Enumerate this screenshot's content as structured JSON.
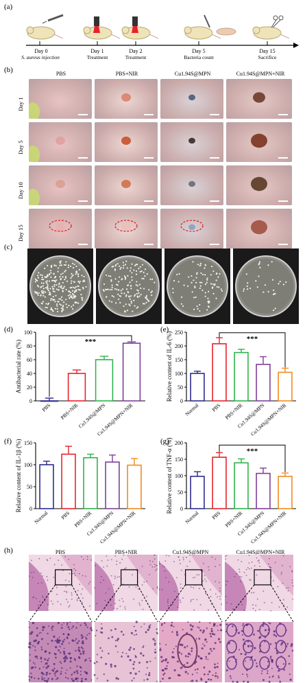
{
  "panels": {
    "a": "(a)",
    "b": "(b)",
    "c": "(c)",
    "d": "(d)",
    "e": "(e)",
    "f": "(f)",
    "g": "(g)",
    "h": "(h)"
  },
  "timeline": {
    "events": [
      {
        "day": "Day 0",
        "label": "S. aureus injection"
      },
      {
        "day": "Day 1",
        "label": "Treatment"
      },
      {
        "day": "Day 2",
        "label": "Treatment"
      },
      {
        "day": "Day 5",
        "label": "Bacteria count"
      },
      {
        "day": "Day 15",
        "label": "Sacrifice"
      }
    ]
  },
  "groups": [
    "PBS",
    "PBS+NIR",
    "Cu1.94S@MPN",
    "Cu1.94S@MPN+NIR"
  ],
  "days": [
    "Day 1",
    "Day 5",
    "Day 10",
    "Day 15"
  ],
  "significance": "***",
  "colors": {
    "blue": "#2b2b8f",
    "red": "#e8212a",
    "green": "#2db34a",
    "purple": "#7d3f98",
    "orange": "#f28a1e"
  },
  "chart_data": [
    {
      "panel": "d",
      "type": "bar",
      "categories": [
        "PBS",
        "PBS+NIR",
        "Cu1.94S@MPN",
        "Cu1.94S@MPN+NIR"
      ],
      "values": [
        0,
        40,
        60,
        84
      ],
      "errors": [
        4,
        5,
        5,
        2
      ],
      "ylabel": "Antibacterial rate (%)",
      "ylim": [
        0,
        100
      ],
      "yticks": [
        "0",
        "20",
        "40",
        "60",
        "80",
        "100"
      ]
    },
    {
      "panel": "e",
      "type": "bar",
      "categories": [
        "Normal",
        "PBS",
        "PBS+NIR",
        "Cu1.94S@MPN",
        "Cu1.94S@MPN+NIR"
      ],
      "values": [
        100,
        208,
        176,
        133,
        104
      ],
      "errors": [
        8,
        22,
        12,
        28,
        15
      ],
      "ylabel": "Relative content of IL-6 (%)",
      "ylim": [
        0,
        250
      ],
      "yticks": [
        "0",
        "50",
        "100",
        "150",
        "200",
        "250"
      ]
    },
    {
      "panel": "f",
      "type": "bar",
      "categories": [
        "Normal",
        "PBS",
        "PBS+NIR",
        "Cu1.94S@MPN",
        "Cu1.94S@MPN+NIR"
      ],
      "values": [
        100,
        124,
        116,
        106,
        99
      ],
      "errors": [
        8,
        18,
        8,
        16,
        15
      ],
      "ylabel": "Relative content of IL-1β (%)",
      "ylim": [
        0,
        150
      ],
      "yticks": [
        "0",
        "50",
        "100",
        "150"
      ]
    },
    {
      "panel": "g",
      "type": "bar",
      "categories": [
        "Normal",
        "PBS",
        "PBS+NIR",
        "Cu1.94S@MPN",
        "Cu1.94S@MPN+NIR"
      ],
      "values": [
        98,
        156,
        139,
        107,
        98
      ],
      "errors": [
        14,
        14,
        12,
        16,
        10
      ],
      "ylabel": "Relative content of TNF-α (%)",
      "ylim": [
        0,
        200
      ],
      "yticks": [
        "0",
        "50",
        "100",
        "150",
        "200"
      ]
    }
  ]
}
